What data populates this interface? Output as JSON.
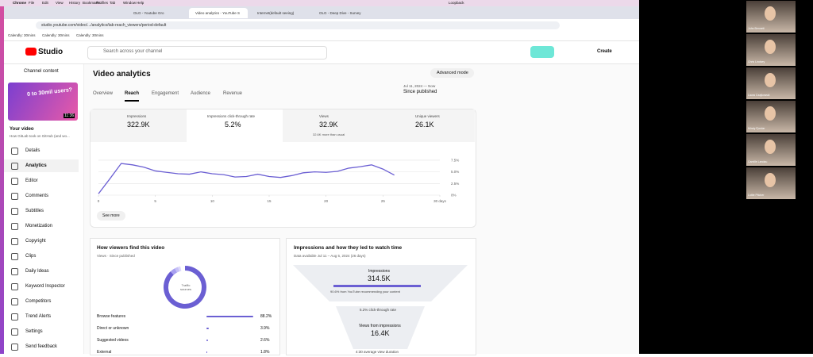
{
  "menu_bar": {
    "app": "Chrome",
    "items": [
      "File",
      "Edit",
      "View",
      "History",
      "Bookmarks",
      "Profiles",
      "Tab",
      "Window",
      "Help"
    ]
  },
  "browser": {
    "tabs": [
      "OLG - Youtube Gro",
      "Video analytics - YouTube S",
      "Internet(default seeing)",
      "OLG - Deep Dive - Survey"
    ],
    "address": "studio.youtube.com/video/.../analytics/tab-reach_viewers/period-default",
    "bookmarks": [
      "Calendly: 30mins",
      "Calendly: 30mins",
      "Calendly: 30mins"
    ],
    "window_label": "Loopback"
  },
  "header": {
    "logo": "Studio",
    "search": "Search across your channel",
    "create": "Create"
  },
  "sidebar": {
    "back": "Channel content",
    "thumb_text": "0 to 30mil users?",
    "duration": "11:36",
    "your_video": "Your video",
    "video_title": "How GitLab took on GitHub (and wo...",
    "nav": [
      "Details",
      "Analytics",
      "Editor",
      "Comments",
      "Subtitles",
      "Monetization",
      "Copyright",
      "Clips",
      "Daily Ideas",
      "Keyword Inspector",
      "Competitors",
      "Trend Alerts",
      "Settings",
      "Send feedback"
    ]
  },
  "main": {
    "title": "Video analytics",
    "advanced": "Advanced mode",
    "tabs": [
      "Overview",
      "Reach",
      "Engagement",
      "Audience",
      "Revenue"
    ],
    "date_range": "Jul 11, 2024 — Now",
    "period": "Since published",
    "metrics": [
      {
        "label": "Impressions",
        "value": "322.9K"
      },
      {
        "label": "Impressions click-through rate",
        "value": "5.2%"
      },
      {
        "label": "Views",
        "value": "32.9K",
        "note": "32.6K more than usual"
      },
      {
        "label": "Unique viewers",
        "value": "26.1K"
      }
    ],
    "see_more": "See more"
  },
  "chart_data": {
    "type": "line",
    "x": [
      0,
      1,
      2,
      3,
      4,
      5,
      6,
      7,
      8,
      9,
      10,
      11,
      12,
      13,
      14,
      15,
      16,
      17,
      18,
      19,
      20,
      21,
      22,
      23,
      24,
      25,
      26
    ],
    "series": [
      {
        "name": "Impressions click-through rate",
        "color": "#6b5fd3",
        "values": [
          0.3,
          3.5,
          6.8,
          6.5,
          6.0,
          5.2,
          4.9,
          4.6,
          4.5,
          5.0,
          4.6,
          4.4,
          3.9,
          4.0,
          4.5,
          4.0,
          3.8,
          4.2,
          4.8,
          5.0,
          4.9,
          5.1,
          5.8,
          6.1,
          6.5,
          5.6,
          4.3
        ]
      }
    ],
    "xlim": [
      0,
      30
    ],
    "xticks": [
      0,
      5,
      10,
      15,
      20,
      25,
      {
        "value": 30,
        "label": "30 days"
      }
    ],
    "ylim": [
      0,
      8
    ],
    "yticks": [
      {
        "value": 0,
        "label": "0%"
      },
      {
        "value": 2.5,
        "label": "2.5%"
      },
      {
        "value": 5,
        "label": "5.0%"
      },
      {
        "value": 7.5,
        "label": "7.5%"
      }
    ],
    "grid": true
  },
  "traffic": {
    "title": "How viewers find this video",
    "subtitle": "Views · Since published",
    "center": "Traffic sources",
    "categories": [
      "Browse features",
      "Direct or unknown",
      "Suggested videos",
      "External"
    ],
    "values": [
      88.2,
      3.9,
      2.6,
      1.8
    ],
    "value_labels": [
      "88.2%",
      "3.9%",
      "2.6%",
      "1.8%"
    ]
  },
  "funnel": {
    "title": "Impressions and how they led to watch time",
    "subtitle": "Data available Jul 11 – Aug 5, 2024 (26 days)",
    "impressions_label": "Impressions",
    "impressions": "314.5K",
    "recommend": "90.6% from YouTube recommending your content",
    "ctr": "5.2% click-through rate",
    "views_label": "Views from impressions",
    "views": "16.4K",
    "duration": "4:30 average view duration"
  },
  "participants": [
    "John Bennett",
    "Chris Lindsey",
    "Laura Czajkowski",
    "Mindy Fjordar",
    "Camille Landau",
    "Lottie Pitcher"
  ]
}
